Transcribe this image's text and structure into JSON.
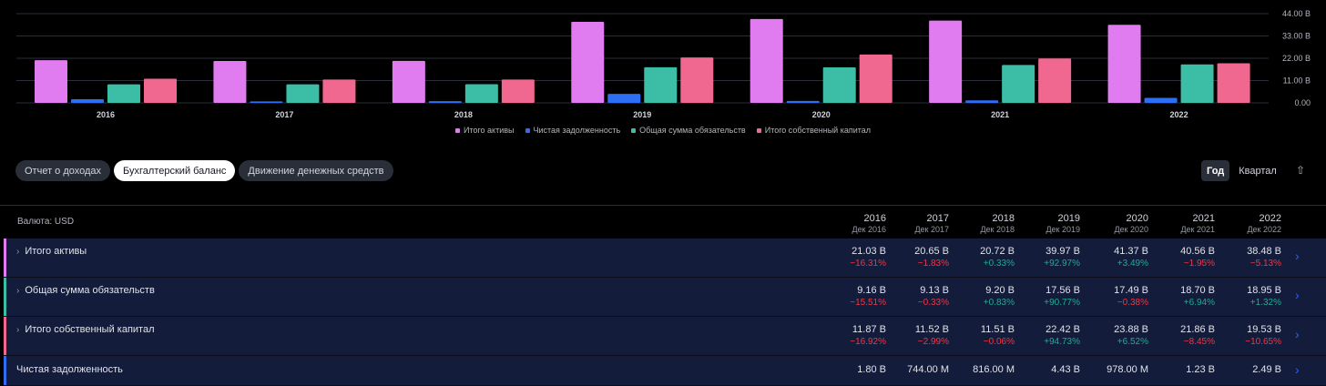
{
  "chart_data": {
    "type": "bar",
    "categories": [
      "2016",
      "2017",
      "2018",
      "2019",
      "2020",
      "2021",
      "2022"
    ],
    "series": [
      {
        "name": "Итого активы",
        "color": "#e07cf0",
        "values": [
          21.03,
          20.65,
          20.72,
          39.97,
          41.37,
          40.56,
          38.48
        ]
      },
      {
        "name": "Чистая задолженность",
        "color": "#2e6ef5",
        "values": [
          1.8,
          0.744,
          0.816,
          4.43,
          0.978,
          1.23,
          2.49
        ]
      },
      {
        "name": "Общая сумма обязательств",
        "color": "#3cbda6",
        "values": [
          9.16,
          9.13,
          9.2,
          17.56,
          17.49,
          18.7,
          18.95
        ]
      },
      {
        "name": "Итого собственный капитал",
        "color": "#f06890",
        "values": [
          11.87,
          11.52,
          11.51,
          22.42,
          23.88,
          21.86,
          19.53
        ]
      }
    ],
    "ylim": [
      0,
      44
    ],
    "yticks": [
      "0.00",
      "11.00 B",
      "22.00 B",
      "33.00 B",
      "44.00 B"
    ],
    "ytick_values": [
      0,
      11,
      22,
      33,
      44
    ],
    "legend_position": "bottom"
  },
  "tabs": [
    "Отчет о доходах",
    "Бухгалтерский баланс",
    "Движение денежных средств"
  ],
  "period": {
    "year": "Год",
    "quarter": "Квартал"
  },
  "share_icon": "share-icon",
  "table": {
    "currency": "Валюта: USD",
    "years": [
      "2016",
      "2017",
      "2018",
      "2019",
      "2020",
      "2021",
      "2022"
    ],
    "dates": [
      "Дек 2016",
      "Дек 2017",
      "Дек 2018",
      "Дек 2019",
      "Дек 2020",
      "Дек 2021",
      "Дек 2022"
    ],
    "rows": [
      {
        "label": "Итого активы",
        "color": "#e07cf0",
        "values": [
          "21.03 B",
          "20.65 B",
          "20.72 B",
          "39.97 B",
          "41.37 B",
          "40.56 B",
          "38.48 B"
        ],
        "changes": [
          "−16.31%",
          "−1.83%",
          "+0.33%",
          "+92.97%",
          "+3.49%",
          "−1.95%",
          "−5.13%"
        ]
      },
      {
        "label": "Общая сумма обязательств",
        "color": "#3cbda6",
        "values": [
          "9.16 B",
          "9.13 B",
          "9.20 B",
          "17.56 B",
          "17.49 B",
          "18.70 B",
          "18.95 B"
        ],
        "changes": [
          "−15.51%",
          "−0.33%",
          "+0.83%",
          "+90.77%",
          "−0.38%",
          "+6.94%",
          "+1.32%"
        ]
      },
      {
        "label": "Итого собственный капитал",
        "color": "#f06890",
        "values": [
          "11.87 B",
          "11.52 B",
          "11.51 B",
          "22.42 B",
          "23.88 B",
          "21.86 B",
          "19.53 B"
        ],
        "changes": [
          "−16.92%",
          "−2.99%",
          "−0.06%",
          "+94.73%",
          "+6.52%",
          "−8.45%",
          "−10.65%"
        ]
      },
      {
        "label": "Чистая задолженность",
        "color": "#2e6ef5",
        "values": [
          "1.80 B",
          "744.00 M",
          "816.00 M",
          "4.43 B",
          "978.00 M",
          "1.23 B",
          "2.49 B"
        ],
        "changes": []
      }
    ]
  }
}
